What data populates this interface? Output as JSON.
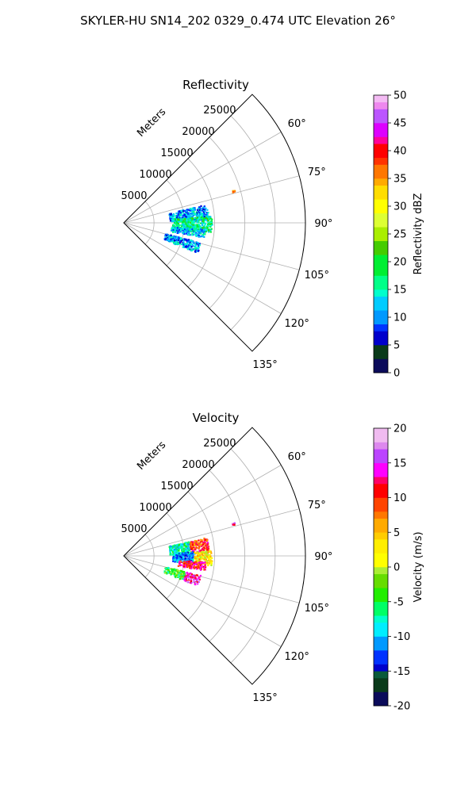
{
  "figure_title": "SKYLER-HU  SN14_202  0329_0.474 UTC Elevation 26°",
  "chart_data": [
    {
      "type": "polar-sector",
      "title": "Reflectivity",
      "radial_axis_label": "Meters",
      "radial_ticks": [
        "5000",
        "10000",
        "15000",
        "20000",
        "25000"
      ],
      "radial_values": [
        5000,
        10000,
        15000,
        20000,
        25000
      ],
      "rlim": [
        0,
        30000
      ],
      "angular_range_deg": [
        45,
        135
      ],
      "angular_ticks": [
        "60°",
        "75°",
        "90°",
        "105°",
        "120°",
        "135°"
      ],
      "angular_values": [
        60,
        75,
        90,
        105,
        120,
        135
      ],
      "grid": true,
      "colorbar": {
        "label": "Reflectivity dBZ",
        "range": [
          0,
          50
        ],
        "ticks": [
          "0",
          "5",
          "10",
          "15",
          "20",
          "25",
          "30",
          "35",
          "40",
          "45",
          "50"
        ],
        "tick_values": [
          0,
          5,
          10,
          15,
          20,
          25,
          30,
          35,
          40,
          45,
          50
        ]
      },
      "data_regions": [
        {
          "azimuth_deg": [
            77,
            88
          ],
          "range_m": [
            7500,
            14000
          ],
          "value": 11
        },
        {
          "azimuth_deg": [
            85,
            96
          ],
          "range_m": [
            8000,
            14500
          ],
          "value": 17
        },
        {
          "azimuth_deg": [
            94,
            100
          ],
          "range_m": [
            7800,
            13500
          ],
          "value": 12
        },
        {
          "azimuth_deg": [
            104,
            112
          ],
          "range_m": [
            7000,
            13000
          ],
          "value": 11
        },
        {
          "azimuth_deg": [
            73,
            74
          ],
          "range_m": [
            18500,
            19000
          ],
          "value": 36
        }
      ]
    },
    {
      "type": "polar-sector",
      "title": "Velocity",
      "radial_axis_label": "Meters",
      "radial_ticks": [
        "5000",
        "10000",
        "15000",
        "20000",
        "25000"
      ],
      "radial_values": [
        5000,
        10000,
        15000,
        20000,
        25000
      ],
      "rlim": [
        0,
        30000
      ],
      "angular_range_deg": [
        45,
        135
      ],
      "angular_ticks": [
        "60°",
        "75°",
        "90°",
        "105°",
        "120°",
        "135°"
      ],
      "angular_values": [
        60,
        75,
        90,
        105,
        120,
        135
      ],
      "grid": true,
      "colorbar": {
        "label": "Velocity (m/s)",
        "range": [
          -20,
          20
        ],
        "ticks": [
          "-20",
          "-15",
          "-10",
          "-5",
          "0",
          "5",
          "10",
          "15",
          "20"
        ],
        "tick_values": [
          -20,
          -15,
          -10,
          -5,
          0,
          5,
          10,
          15,
          20
        ]
      },
      "data_regions": [
        {
          "azimuth_deg": [
            77,
            88
          ],
          "range_m": [
            7500,
            11000
          ],
          "value": -7
        },
        {
          "azimuth_deg": [
            77,
            88
          ],
          "range_m": [
            11000,
            14000
          ],
          "value": 10
        },
        {
          "azimuth_deg": [
            86,
            96
          ],
          "range_m": [
            8000,
            11500
          ],
          "value": -11
        },
        {
          "azimuth_deg": [
            86,
            96
          ],
          "range_m": [
            11500,
            14500
          ],
          "value": 3
        },
        {
          "azimuth_deg": [
            94,
            100
          ],
          "range_m": [
            9000,
            13500
          ],
          "value": 11
        },
        {
          "azimuth_deg": [
            104,
            112
          ],
          "range_m": [
            7000,
            10500
          ],
          "value": -4
        },
        {
          "azimuth_deg": [
            104,
            112
          ],
          "range_m": [
            10500,
            13000
          ],
          "value": 14
        },
        {
          "azimuth_deg": [
            73,
            74
          ],
          "range_m": [
            18500,
            19000
          ],
          "value": 15
        }
      ]
    }
  ]
}
